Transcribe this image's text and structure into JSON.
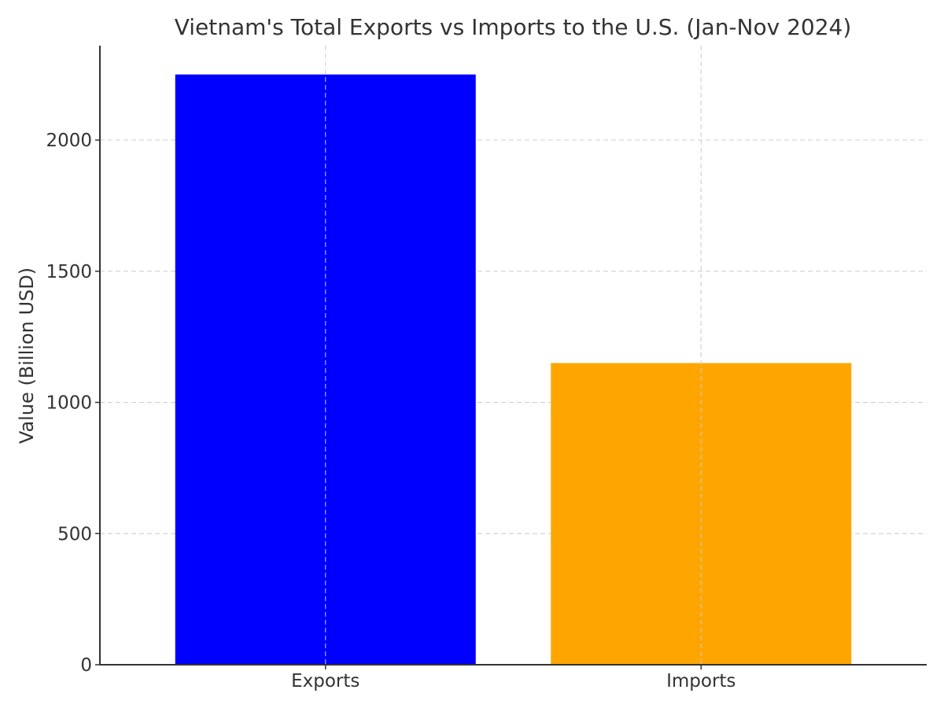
{
  "chart_data": {
    "type": "bar",
    "title": "Vietnam's Total Exports vs Imports to the U.S. (Jan-Nov 2024)",
    "xlabel": "",
    "ylabel": "Value (Billion USD)",
    "categories": [
      "Exports",
      "Imports"
    ],
    "values": [
      2250,
      1150
    ],
    "colors": [
      "#0000ff",
      "#ffa500"
    ],
    "ylim": [
      0,
      2360
    ],
    "yticks": [
      0,
      500,
      1000,
      1500,
      2000
    ],
    "ytick_labels": [
      "0",
      "500",
      "1000",
      "1500",
      "2000"
    ],
    "grid": true,
    "legend": "none"
  }
}
